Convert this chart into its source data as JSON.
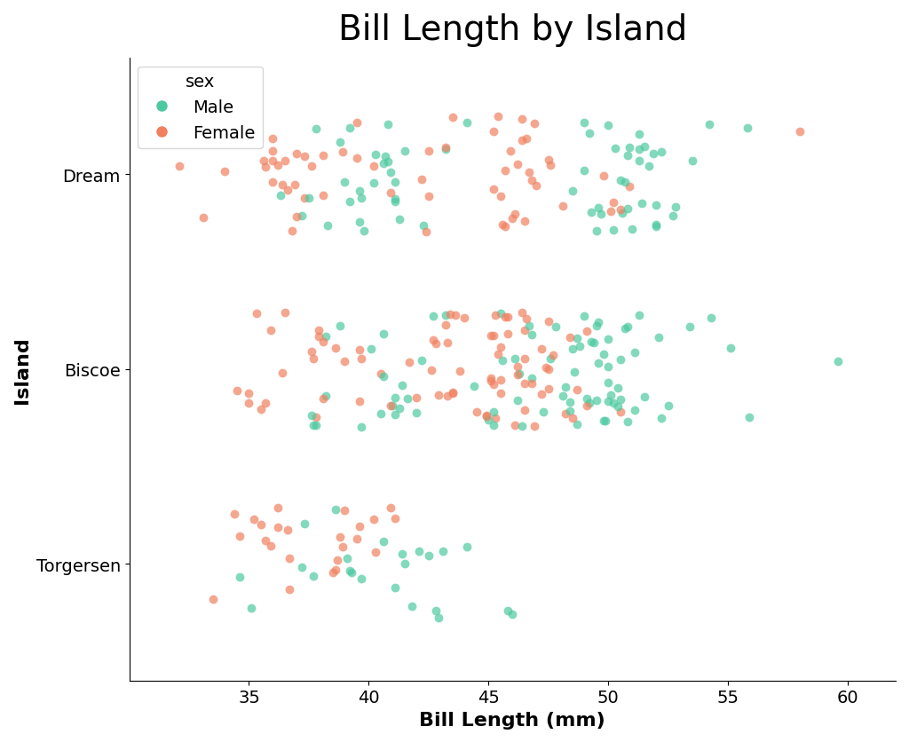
{
  "title": "Bill Length by Island",
  "xlabel": "Bill Length (mm)",
  "ylabel": "Island",
  "y_categories": [
    "Torgersen",
    "Biscoe",
    "Dream"
  ],
  "xlim": [
    30,
    62
  ],
  "xticks": [
    35,
    40,
    45,
    50,
    55,
    60
  ],
  "male_color": "#4dc9a0",
  "female_color": "#f08060",
  "alpha": 0.7,
  "point_size": 50,
  "jitter": 0.3,
  "title_fontsize": 28,
  "label_fontsize": 16,
  "tick_fontsize": 14,
  "legend_fontsize": 14
}
